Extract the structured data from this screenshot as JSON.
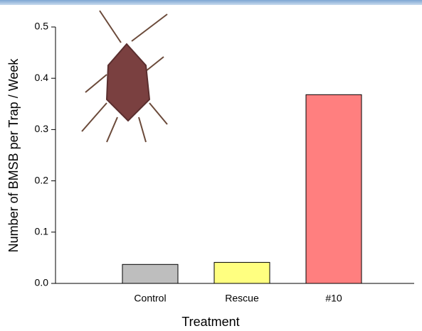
{
  "chart_data": {
    "type": "bar",
    "categories": [
      "Control",
      "Rescue",
      "#10"
    ],
    "values": [
      0.037,
      0.041,
      0.368
    ],
    "colors": [
      "#bebebe",
      "#ffff80",
      "#ff7f7f"
    ],
    "ylim": [
      0,
      0.5
    ],
    "yticks": [
      {
        "value": 0,
        "label": "0.0"
      },
      0.1,
      0.2,
      0.3,
      0.4,
      0.5
    ],
    "ylabel": "Number of BMSB per Trap / Week",
    "xlabel": "Treatment"
  }
}
